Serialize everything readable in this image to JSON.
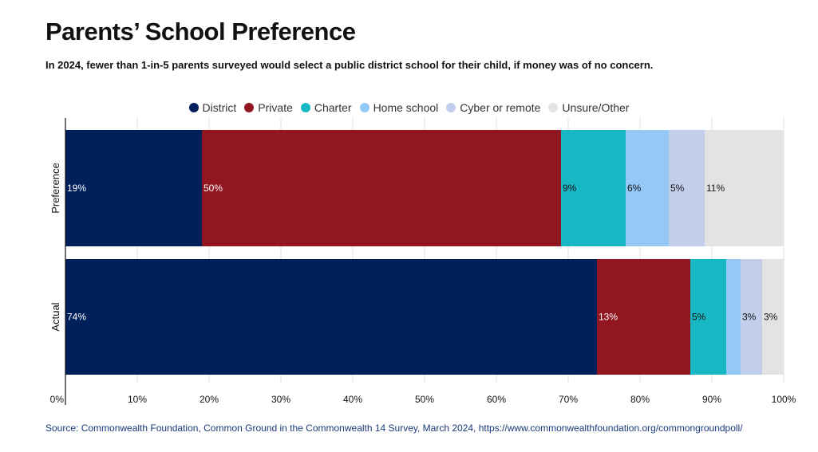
{
  "title": "Parents’ School Preference",
  "subtitle": "In 2024, fewer than 1-in-5 parents surveyed would select a public district school for their child, if money was of no concern.",
  "source": "Source: Commonwealth Foundation, Common Ground in the Commonwealth 14 Survey, March 2024, https://www.commonwealthfoundation.org/commongroundpoll/",
  "legend": [
    {
      "label": "District",
      "color": "#00205b"
    },
    {
      "label": "Private",
      "color": "#921620"
    },
    {
      "label": "Charter",
      "color": "#17b8c4"
    },
    {
      "label": "Home school",
      "color": "#94c8f5"
    },
    {
      "label": "Cyber or remote",
      "color": "#c1cfec"
    },
    {
      "label": "Unsure/Other",
      "color": "#e3e3e3"
    }
  ],
  "chart_data": {
    "type": "bar",
    "orientation": "horizontal",
    "stacked": true,
    "categories": [
      "Preference",
      "Actual"
    ],
    "series": [
      {
        "name": "District",
        "values": [
          19,
          74
        ],
        "labels": [
          "19%",
          "74%"
        ]
      },
      {
        "name": "Private",
        "values": [
          50,
          13
        ],
        "labels": [
          "50%",
          "13%"
        ]
      },
      {
        "name": "Charter",
        "values": [
          9,
          5
        ],
        "labels": [
          "9%",
          "5%"
        ]
      },
      {
        "name": "Home school",
        "values": [
          6,
          2
        ],
        "labels": [
          "6%",
          ""
        ]
      },
      {
        "name": "Cyber or remote",
        "values": [
          5,
          3
        ],
        "labels": [
          "5%",
          "3%"
        ]
      },
      {
        "name": "Unsure/Other",
        "values": [
          11,
          3
        ],
        "labels": [
          "11%",
          "3%"
        ]
      }
    ],
    "xlim": [
      0,
      100
    ],
    "xticks": [
      "0%",
      "10%",
      "20%",
      "30%",
      "40%",
      "50%",
      "60%",
      "70%",
      "80%",
      "90%",
      "100%"
    ],
    "grid": true,
    "legend_position": "top"
  }
}
